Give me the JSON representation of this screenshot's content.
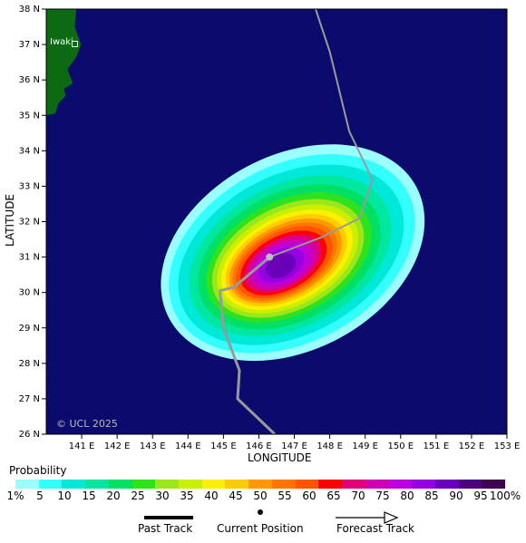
{
  "map": {
    "copyright": "© UCL 2025",
    "place_label": "Iwaki",
    "colors": {
      "sea": "#0b0b6e",
      "land": "#0b6a12",
      "frame": "#000000",
      "track": "#9a9a9a"
    },
    "axes": {
      "x_title": "LONGITUDE",
      "y_title": "LATITUDE",
      "lon_range": [
        140,
        153
      ],
      "lat_range": [
        26,
        38
      ],
      "x_ticks": [
        {
          "lon": 141,
          "label": "141 E"
        },
        {
          "lon": 142,
          "label": "142 E"
        },
        {
          "lon": 143,
          "label": "143 E"
        },
        {
          "lon": 144,
          "label": "144 E"
        },
        {
          "lon": 145,
          "label": "145 E"
        },
        {
          "lon": 146,
          "label": "146 E"
        },
        {
          "lon": 147,
          "label": "147 E"
        },
        {
          "lon": 148,
          "label": "148 E"
        },
        {
          "lon": 149,
          "label": "149 E"
        },
        {
          "lon": 150,
          "label": "150 E"
        },
        {
          "lon": 151,
          "label": "151 E"
        },
        {
          "lon": 152,
          "label": "152 E"
        },
        {
          "lon": 153,
          "label": "153 E"
        }
      ],
      "y_ticks": [
        {
          "lat": 38,
          "label": "38 N"
        },
        {
          "lat": 37,
          "label": "37 N"
        },
        {
          "lat": 36,
          "label": "36 N"
        },
        {
          "lat": 35,
          "label": "35 N"
        },
        {
          "lat": 34,
          "label": "34 N"
        },
        {
          "lat": 33,
          "label": "33 N"
        },
        {
          "lat": 32,
          "label": "32 N"
        },
        {
          "lat": 31,
          "label": "31 N"
        },
        {
          "lat": 30,
          "label": "30 N"
        },
        {
          "lat": 29,
          "label": "29 N"
        },
        {
          "lat": 28,
          "label": "28 N"
        },
        {
          "lat": 27,
          "label": "27 N"
        },
        {
          "lat": 26,
          "label": "26 N"
        }
      ]
    },
    "current_position": {
      "lon": 146.3,
      "lat": 31.0
    },
    "past_track": [
      {
        "lon": 146.45,
        "lat": 26.0
      },
      {
        "lon": 145.4,
        "lat": 27.0
      },
      {
        "lon": 145.45,
        "lat": 27.8
      },
      {
        "lon": 145.0,
        "lat": 29.0
      },
      {
        "lon": 144.9,
        "lat": 30.05
      },
      {
        "lon": 145.3,
        "lat": 30.15
      },
      {
        "lon": 146.3,
        "lat": 31.0
      }
    ],
    "forecast_track": [
      {
        "lon": 146.3,
        "lat": 31.0
      },
      {
        "lon": 147.75,
        "lat": 31.55
      },
      {
        "lon": 148.85,
        "lat": 32.1
      },
      {
        "lon": 149.2,
        "lat": 33.2
      },
      {
        "lon": 148.55,
        "lat": 34.55
      },
      {
        "lon": 148.0,
        "lat": 36.8
      },
      {
        "lon": 147.6,
        "lat": 38.0
      }
    ],
    "probability_field": {
      "center": {
        "lon": 146.6,
        "lat": 30.75
      },
      "levels": [
        {
          "threshold": 1,
          "rx_deg": 3.95,
          "ry_deg": 2.75,
          "dlon": 1.4,
          "dlat": 0.55
        },
        {
          "threshold": 5,
          "rx_deg": 3.7,
          "ry_deg": 2.5,
          "dlon": 1.3,
          "dlat": 0.5
        },
        {
          "threshold": 10,
          "rx_deg": 3.4,
          "ry_deg": 2.25,
          "dlon": 1.2,
          "dlat": 0.45
        },
        {
          "threshold": 15,
          "rx_deg": 3.05,
          "ry_deg": 2.0,
          "dlon": 1.1,
          "dlat": 0.4
        },
        {
          "threshold": 20,
          "rx_deg": 2.75,
          "ry_deg": 1.8,
          "dlon": 1.0,
          "dlat": 0.35
        },
        {
          "threshold": 25,
          "rx_deg": 2.5,
          "ry_deg": 1.6,
          "dlon": 0.95,
          "dlat": 0.32
        },
        {
          "threshold": 30,
          "rx_deg": 2.3,
          "ry_deg": 1.45,
          "dlon": 0.85,
          "dlat": 0.28
        },
        {
          "threshold": 35,
          "rx_deg": 2.15,
          "ry_deg": 1.32,
          "dlon": 0.8,
          "dlat": 0.25
        },
        {
          "threshold": 40,
          "rx_deg": 2.0,
          "ry_deg": 1.2,
          "dlon": 0.72,
          "dlat": 0.22
        },
        {
          "threshold": 45,
          "rx_deg": 1.85,
          "ry_deg": 1.1,
          "dlon": 0.65,
          "dlat": 0.2
        },
        {
          "threshold": 50,
          "rx_deg": 1.72,
          "ry_deg": 1.0,
          "dlon": 0.58,
          "dlat": 0.18
        },
        {
          "threshold": 55,
          "rx_deg": 1.6,
          "ry_deg": 0.92,
          "dlon": 0.5,
          "dlat": 0.15
        },
        {
          "threshold": 60,
          "rx_deg": 1.48,
          "ry_deg": 0.85,
          "dlon": 0.43,
          "dlat": 0.12
        },
        {
          "threshold": 65,
          "rx_deg": 1.32,
          "ry_deg": 0.76,
          "dlon": 0.36,
          "dlat": 0.1
        },
        {
          "threshold": 70,
          "rx_deg": 1.18,
          "ry_deg": 0.68,
          "dlon": 0.3,
          "dlat": 0.08
        },
        {
          "threshold": 75,
          "rx_deg": 1.02,
          "ry_deg": 0.6,
          "dlon": 0.24,
          "dlat": 0.06
        },
        {
          "threshold": 80,
          "rx_deg": 0.86,
          "ry_deg": 0.52,
          "dlon": 0.18,
          "dlat": 0.04
        },
        {
          "threshold": 85,
          "rx_deg": 0.68,
          "ry_deg": 0.43,
          "dlon": 0.12,
          "dlat": 0.02
        },
        {
          "threshold": 90,
          "rx_deg": 0.45,
          "ry_deg": 0.32,
          "dlon": 0.06,
          "dlat": 0.0
        }
      ]
    }
  },
  "legend": {
    "title": "Probability",
    "colors": [
      "#9cffff",
      "#33ffff",
      "#00e8d8",
      "#00e7a0",
      "#00e064",
      "#2ee31e",
      "#9ee61c",
      "#c8f000",
      "#fff000",
      "#ffcc00",
      "#ff9900",
      "#ff7700",
      "#ff5500",
      "#ff0000",
      "#e0007a",
      "#cc00b4",
      "#bb00dd",
      "#9500e0",
      "#6a00b8",
      "#4c0080",
      "#400052"
    ],
    "labels": [
      "1%",
      "5",
      "10",
      "15",
      "20",
      "25",
      "30",
      "35",
      "40",
      "45",
      "50",
      "55",
      "60",
      "65",
      "70",
      "75",
      "80",
      "85",
      "90",
      "95",
      "100%"
    ],
    "past_track_label": "Past Track",
    "current_position_label": "Current Position",
    "forecast_track_label": "Forecast Track"
  }
}
